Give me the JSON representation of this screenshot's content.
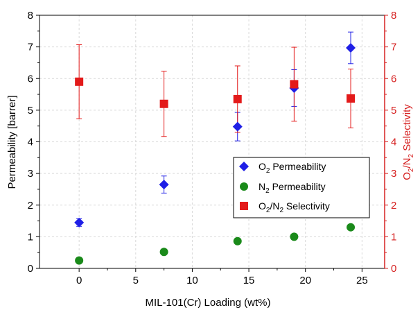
{
  "chart_data": {
    "type": "scatter",
    "xlabel": "MIL-101(Cr) Loading (wt%)",
    "ylabel": "Permeability [barrer]",
    "y2label": {
      "pre": "O",
      "sub1": "2",
      "mid": "/N",
      "sub2": "2",
      "post": " Selectivity"
    },
    "xlim": [
      -3.5,
      27
    ],
    "ylim": [
      0,
      8
    ],
    "y2lim": [
      0,
      8
    ],
    "xticks": [
      0,
      5,
      10,
      15,
      20,
      25
    ],
    "yticks": [
      0,
      1,
      2,
      3,
      4,
      5,
      6,
      7,
      8
    ],
    "y2ticks": [
      0,
      1,
      2,
      3,
      4,
      5,
      6,
      7,
      8
    ],
    "grid": true,
    "legend_position": "center-right",
    "series": [
      {
        "key": "o2",
        "legend": {
          "pre": "O",
          "sub": "2",
          "post": " Permeability"
        },
        "marker": "diamond",
        "color": "#1f1fe6",
        "axis": "left",
        "x": [
          0,
          7.5,
          14,
          19,
          24
        ],
        "y": [
          1.45,
          2.65,
          4.48,
          5.7,
          6.97
        ],
        "err": [
          0.12,
          0.27,
          0.45,
          0.58,
          0.5
        ]
      },
      {
        "key": "n2",
        "legend": {
          "pre": "N",
          "sub": "2",
          "post": " Permeability"
        },
        "marker": "circle",
        "color": "#1a8a1a",
        "axis": "left",
        "x": [
          0,
          7.5,
          14,
          19,
          24
        ],
        "y": [
          0.25,
          0.52,
          0.86,
          1.0,
          1.3
        ],
        "err": [
          0,
          0,
          0,
          0,
          0
        ]
      },
      {
        "key": "sel",
        "legend": {
          "pre": "O",
          "sub": "2",
          "mid": "/N",
          "sub2": "2",
          "post": " Selectivity"
        },
        "marker": "square",
        "color": "#e31a1a",
        "axis": "right",
        "x": [
          0,
          7.5,
          14,
          19,
          24
        ],
        "y": [
          5.9,
          5.2,
          5.35,
          5.82,
          5.37
        ],
        "err": [
          1.17,
          1.03,
          1.05,
          1.17,
          0.93
        ]
      }
    ],
    "colors": {
      "right_axis": "#d62020",
      "grid": "#d9d9d9"
    }
  }
}
